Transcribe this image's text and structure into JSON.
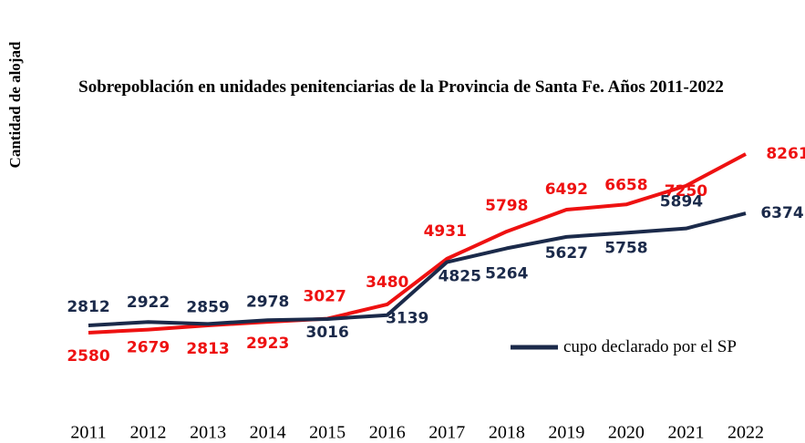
{
  "chart_data": {
    "type": "line",
    "title": "Sobrepoblación en unidades penitenciarias de la Provincia de Santa Fe. Años 2011-2022",
    "ylabel": "Cantidad de alojad",
    "categories": [
      "2011",
      "2012",
      "2013",
      "2014",
      "2015",
      "2016",
      "2017",
      "2018",
      "2019",
      "2020",
      "2021",
      "2022"
    ],
    "series": [
      {
        "color": "#ee1111",
        "values": [
          2580,
          2679,
          2813,
          2923,
          3027,
          3480,
          4931,
          5798,
          6492,
          6658,
          7250,
          8261
        ]
      },
      {
        "name": "cupo declarado por el SP",
        "color": "#1b2a4a",
        "values": [
          2812,
          2922,
          2859,
          2978,
          3016,
          3139,
          4825,
          5264,
          5627,
          5758,
          5894,
          6374
        ]
      }
    ],
    "ylim": [
      0,
      10000
    ]
  }
}
